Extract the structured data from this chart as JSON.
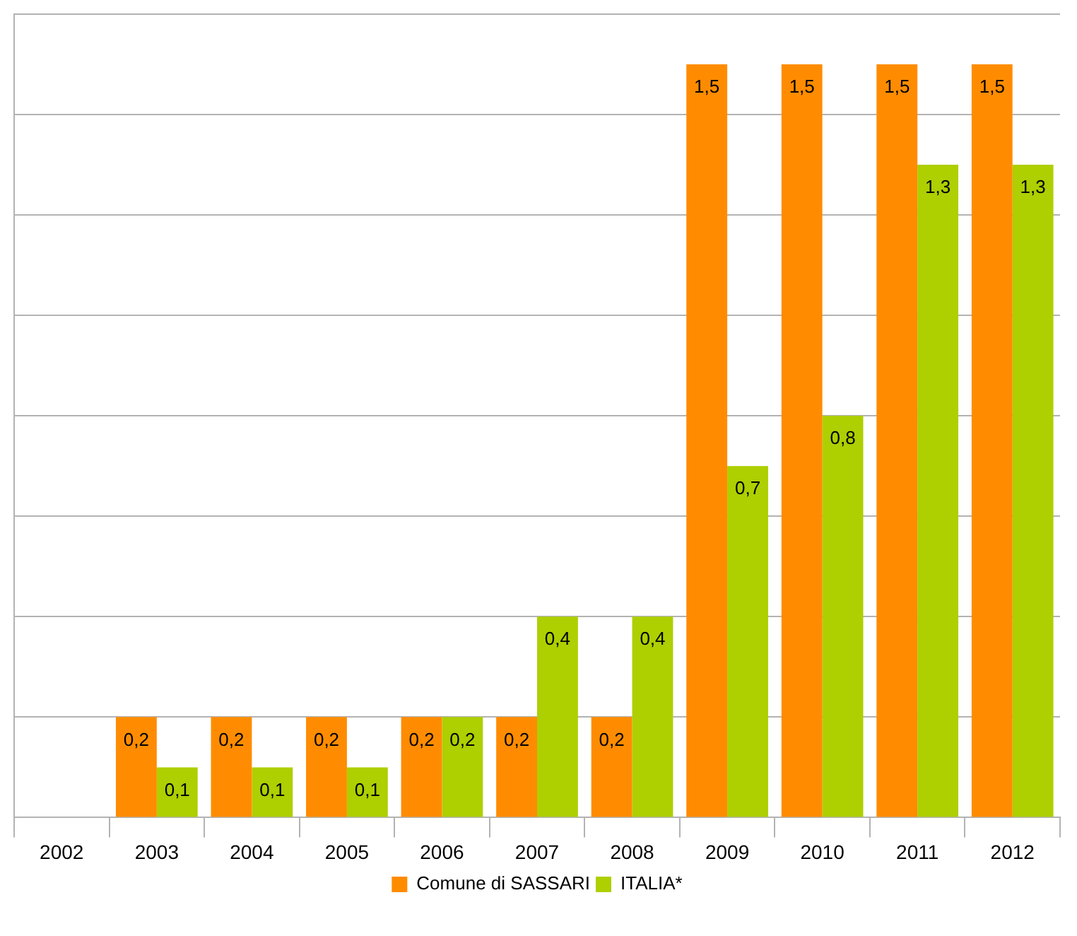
{
  "chart_data": {
    "type": "bar",
    "categories": [
      "2002",
      "2003",
      "2004",
      "2005",
      "2006",
      "2007",
      "2008",
      "2009",
      "2010",
      "2011",
      "2012"
    ],
    "series": [
      {
        "name": "Comune di SASSARI",
        "color": "#ff8c00",
        "values": [
          null,
          0.2,
          0.2,
          0.2,
          0.2,
          0.2,
          0.2,
          1.5,
          1.5,
          1.5,
          1.5
        ],
        "value_labels": [
          null,
          "0,2",
          "0,2",
          "0,2",
          "0,2",
          "0,2",
          "0,2",
          "1,5",
          "1,5",
          "1,5",
          "1,5"
        ]
      },
      {
        "name": "ITALIA*",
        "color": "#aecf00",
        "values": [
          null,
          0.1,
          0.1,
          0.1,
          0.2,
          0.4,
          0.4,
          0.7,
          0.8,
          1.3,
          1.3
        ],
        "value_labels": [
          null,
          "0,1",
          "0,1",
          "0,1",
          "0,2",
          "0,4",
          "0,4",
          "0,7",
          "0,8",
          "1,3",
          "1,3"
        ]
      }
    ],
    "tick_labels": "x",
    "grid": "y",
    "legend": "bottom"
  }
}
